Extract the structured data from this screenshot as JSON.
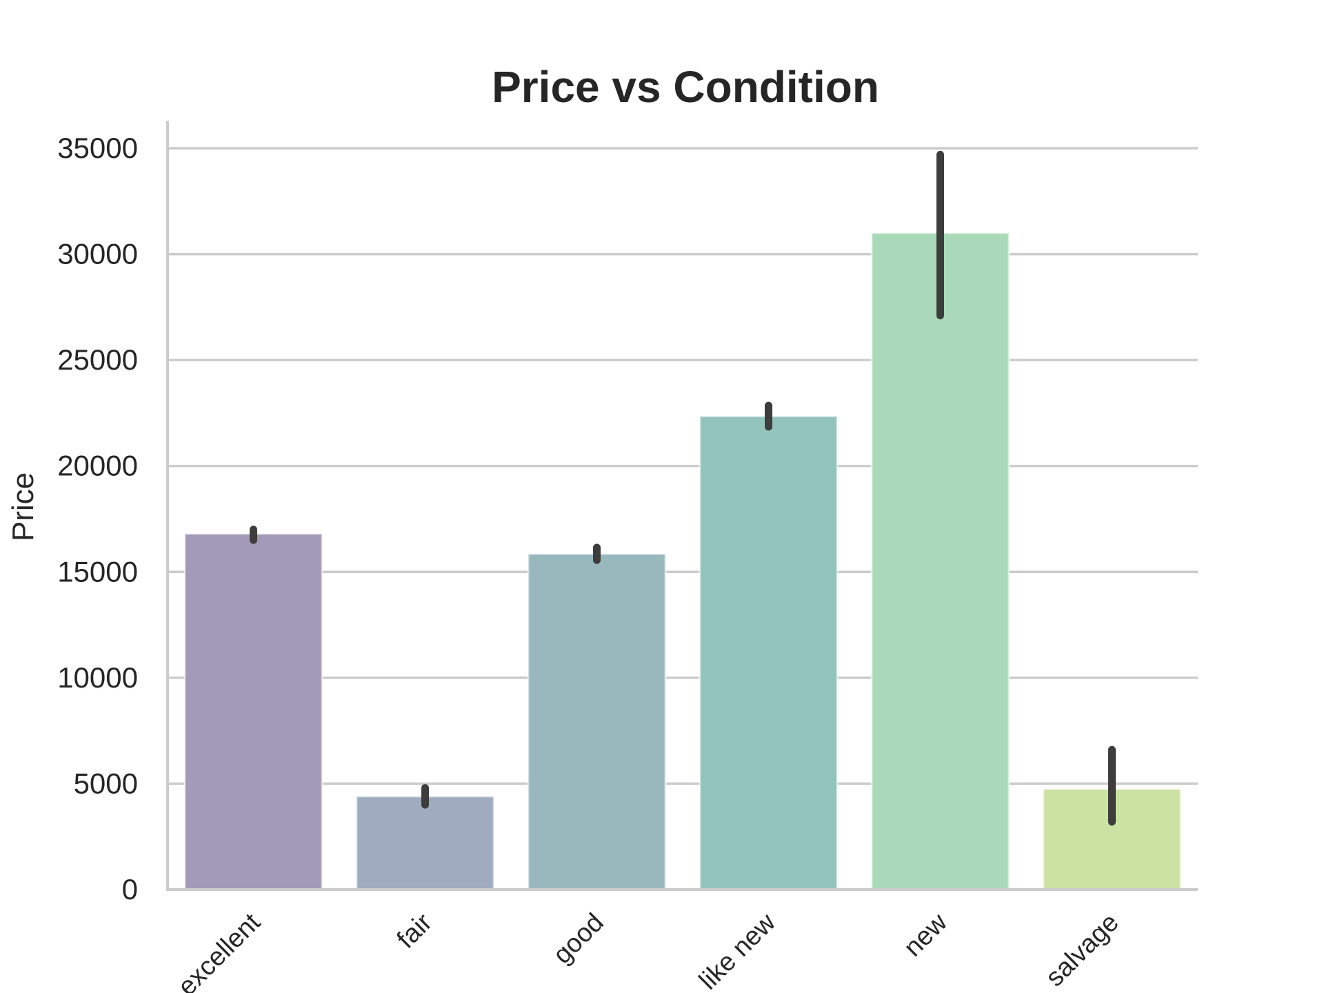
{
  "chart_data": {
    "type": "bar",
    "title": "Price vs Condition",
    "xlabel": "",
    "ylabel": "Price",
    "categories": [
      "excellent",
      "fair",
      "good",
      "like new",
      "new",
      "salvage"
    ],
    "values": [
      16800,
      4400,
      15850,
      22350,
      31000,
      4750
    ],
    "error_bars": [
      {
        "low": 16500,
        "high": 17000
      },
      {
        "low": 4000,
        "high": 4800
      },
      {
        "low": 15550,
        "high": 16150
      },
      {
        "low": 21850,
        "high": 22850
      },
      {
        "low": 27100,
        "high": 34700
      },
      {
        "low": 3200,
        "high": 6600
      }
    ],
    "colors": [
      "#A399B8",
      "#9FACBF",
      "#98B8BE",
      "#93C4BC",
      "#A9D9B8",
      "#CCE2A3"
    ],
    "yticks": [
      0,
      5000,
      10000,
      15000,
      20000,
      25000,
      30000,
      35000
    ],
    "ylim": [
      0,
      36500
    ],
    "grid": "horizontal",
    "legend": "none"
  }
}
